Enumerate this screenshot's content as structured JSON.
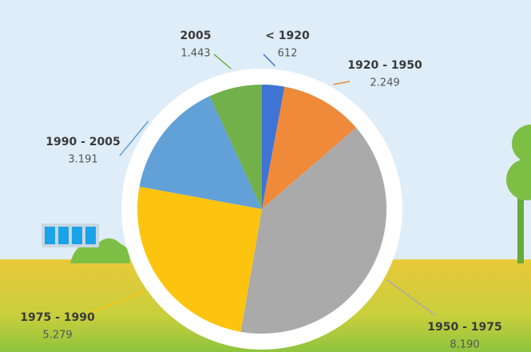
{
  "chart_data": {
    "type": "pie",
    "categories": [
      "< 1920",
      "1920 - 1950",
      "1950 - 1975",
      "1975 - 1990",
      "1990 - 2005",
      "2005"
    ],
    "values": [
      612,
      2249,
      8190,
      5279,
      3191,
      1443
    ],
    "value_labels": [
      "612",
      "2.249",
      "8.190",
      "5.279",
      "3.191",
      "1.443"
    ],
    "colors": [
      "#3f74d4",
      "#ee8a3a",
      "#aaaaaa",
      "#fcc40f",
      "#62a0d8",
      "#72b04a"
    ]
  }
}
